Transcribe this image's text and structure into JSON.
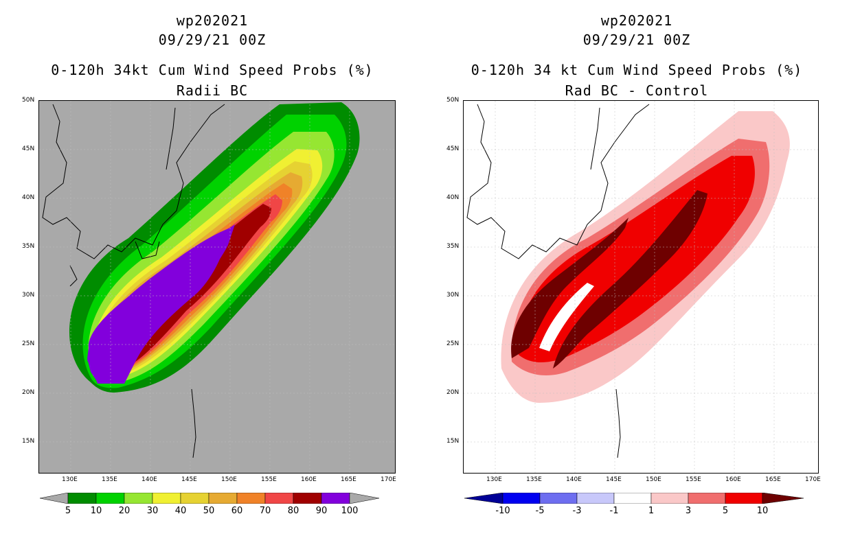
{
  "left": {
    "title_line1": "wp202021",
    "title_line2": "09/29/21 00Z",
    "title_line3": "0-120h 34kt Cum Wind Speed Probs (%)",
    "title_line4": "Radii BC",
    "colorbar_labels": [
      "5",
      "10",
      "20",
      "30",
      "40",
      "50",
      "60",
      "70",
      "80",
      "90",
      "100"
    ],
    "colors": [
      "#008c00",
      "#00d200",
      "#96e632",
      "#f0f032",
      "#e6d232",
      "#e6aa32",
      "#f08228",
      "#f04646",
      "#a00000",
      "#8200dc"
    ],
    "background": "#a9a9a9"
  },
  "right": {
    "title_line1": "wp202021",
    "title_line2": "09/29/21 00Z",
    "title_line3": "0-120h 34 kt Cum Wind Speed Probs (%)",
    "title_line4": "Rad BC - Control",
    "colorbar_labels": [
      "-10",
      "-5",
      "-3",
      "-1",
      "1",
      "3",
      "5",
      "10"
    ],
    "colors": [
      "#000096",
      "#0000f0",
      "#6e6ef0",
      "#c8c8fa",
      "#ffffff",
      "#fac8c8",
      "#f06e6e",
      "#f00000",
      "#6e0000"
    ]
  },
  "lat_labels": [
    "50N",
    "45N",
    "40N",
    "35N",
    "30N",
    "25N",
    "20N",
    "15N"
  ],
  "lon_labels": [
    "130E",
    "135E",
    "140E",
    "145E",
    "150E",
    "155E",
    "160E",
    "165E",
    "170E"
  ]
}
